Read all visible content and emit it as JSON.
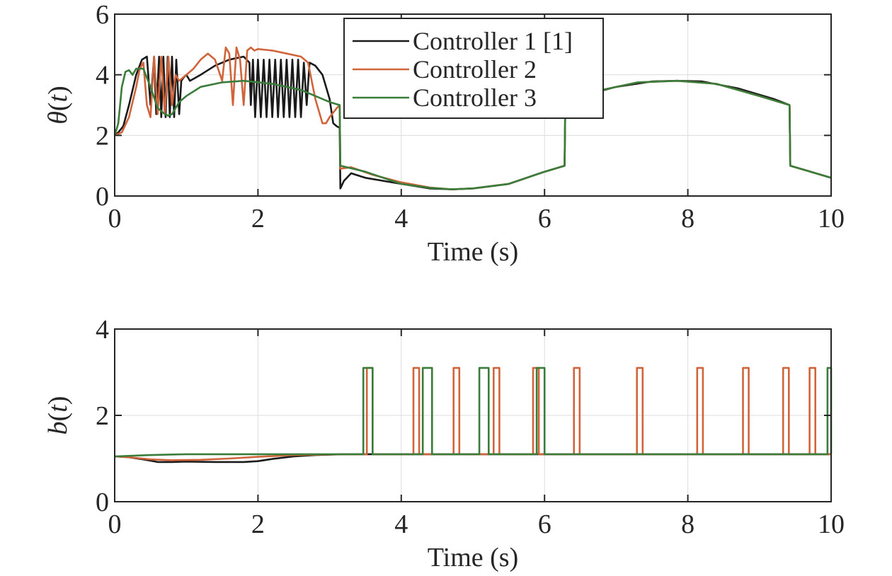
{
  "chart_data": [
    {
      "type": "line",
      "xlabel": "Time (s)",
      "ylabel": "θ(t)",
      "xlim": [
        0,
        10
      ],
      "ylim": [
        0,
        6
      ],
      "xticks": [
        "0",
        "2",
        "4",
        "6",
        "8",
        "10"
      ],
      "yticks": [
        "0",
        "2",
        "4",
        "6"
      ],
      "grid": true,
      "legend": "top-center",
      "series": [
        {
          "name": "Controller 1 [1]",
          "color": "#1a1a1a",
          "x": [
            0,
            0.05,
            0.12,
            0.2,
            0.3,
            0.38,
            0.45,
            0.5,
            0.55,
            0.58,
            0.62,
            0.65,
            0.68,
            0.71,
            0.74,
            0.77,
            0.8,
            0.83,
            0.86,
            0.9,
            0.93,
            0.96,
            1.0,
            1.05,
            1.2,
            1.4,
            1.6,
            1.8,
            1.88,
            1.9,
            1.93,
            1.96,
            2.0,
            2.04,
            2.08,
            2.12,
            2.16,
            2.2,
            2.24,
            2.28,
            2.32,
            2.36,
            2.4,
            2.44,
            2.48,
            2.52,
            2.56,
            2.6,
            2.64,
            2.68,
            2.72,
            2.8,
            2.9,
            3.0,
            3.05,
            3.1,
            3.14,
            3.15,
            3.2,
            3.3,
            3.5,
            4.0,
            4.4,
            4.71,
            5.0,
            5.5,
            6.0,
            6.28,
            6.29,
            6.5,
            7.0,
            7.5,
            7.85,
            8.2,
            8.7,
            9.2,
            9.42,
            9.43,
            10.0
          ],
          "y": [
            2.0,
            2.1,
            2.3,
            3.0,
            4.0,
            4.5,
            4.6,
            3.0,
            4.6,
            2.7,
            4.6,
            2.6,
            4.6,
            2.6,
            4.6,
            2.6,
            4.6,
            2.6,
            4.5,
            2.7,
            3.8,
            3.9,
            4.0,
            3.8,
            4.0,
            4.3,
            4.5,
            4.6,
            4.4,
            3.0,
            4.5,
            2.6,
            4.5,
            2.6,
            4.5,
            2.6,
            4.5,
            2.6,
            4.5,
            2.6,
            4.5,
            2.6,
            4.5,
            2.6,
            4.5,
            2.6,
            4.5,
            2.6,
            4.4,
            3.0,
            4.4,
            4.3,
            4.0,
            3.2,
            2.4,
            2.3,
            2.25,
            0.25,
            0.5,
            0.75,
            0.6,
            0.4,
            0.25,
            0.22,
            0.25,
            0.4,
            0.8,
            1.0,
            3.0,
            3.3,
            3.6,
            3.78,
            3.8,
            3.78,
            3.55,
            3.2,
            3.0,
            1.0,
            0.6
          ]
        },
        {
          "name": "Controller 2",
          "color": "#d0643b",
          "x": [
            0,
            0.1,
            0.2,
            0.3,
            0.35,
            0.4,
            0.45,
            0.5,
            0.55,
            0.6,
            0.65,
            0.7,
            0.75,
            0.8,
            0.85,
            0.9,
            0.95,
            1.0,
            1.1,
            1.2,
            1.3,
            1.4,
            1.5,
            1.55,
            1.6,
            1.65,
            1.7,
            1.75,
            1.8,
            1.85,
            1.9,
            1.95,
            2.0,
            2.2,
            2.4,
            2.6,
            2.7,
            2.8,
            2.9,
            2.95,
            3.0,
            3.1,
            3.14,
            3.15,
            3.3,
            3.6,
            4.0,
            4.4,
            4.71,
            5.0,
            5.5,
            6.0,
            6.28,
            6.29,
            6.8,
            7.3,
            7.85,
            8.4,
            9.0,
            9.42,
            9.43,
            10.0
          ],
          "y": [
            2.0,
            2.1,
            2.6,
            3.6,
            4.2,
            4.4,
            3.0,
            2.6,
            4.6,
            2.7,
            4.6,
            2.7,
            4.6,
            3.0,
            4.0,
            3.8,
            3.9,
            4.0,
            4.2,
            4.5,
            4.7,
            4.5,
            3.8,
            4.9,
            4.7,
            3.0,
            4.9,
            4.5,
            3.0,
            4.8,
            4.9,
            4.8,
            4.85,
            4.8,
            4.7,
            4.6,
            4.4,
            3.2,
            2.4,
            2.4,
            2.6,
            2.9,
            3.0,
            0.9,
            0.95,
            0.7,
            0.45,
            0.28,
            0.22,
            0.25,
            0.4,
            0.8,
            1.0,
            3.0,
            3.5,
            3.75,
            3.8,
            3.7,
            3.3,
            3.0,
            1.0,
            0.6
          ]
        },
        {
          "name": "Controller 3",
          "color": "#3a7d3a",
          "x": [
            0,
            0.05,
            0.1,
            0.15,
            0.2,
            0.25,
            0.3,
            0.4,
            0.5,
            0.6,
            0.7,
            0.75,
            0.8,
            0.85,
            0.9,
            1.0,
            1.2,
            1.5,
            1.8,
            2.2,
            2.6,
            3.0,
            3.14,
            3.15,
            3.5,
            4.0,
            4.4,
            4.71,
            5.0,
            5.5,
            6.0,
            6.28,
            6.29,
            6.8,
            7.3,
            7.85,
            8.4,
            9.0,
            9.42,
            9.43,
            10.0
          ],
          "y": [
            2.0,
            2.4,
            3.6,
            4.1,
            4.15,
            4.0,
            4.2,
            4.2,
            3.6,
            2.9,
            2.7,
            2.65,
            2.7,
            2.9,
            3.1,
            3.3,
            3.6,
            3.75,
            3.8,
            3.7,
            3.5,
            3.1,
            3.0,
            1.0,
            0.8,
            0.4,
            0.27,
            0.22,
            0.25,
            0.4,
            0.8,
            1.0,
            3.0,
            3.5,
            3.75,
            3.8,
            3.7,
            3.3,
            3.0,
            1.0,
            0.6
          ]
        }
      ]
    },
    {
      "type": "line",
      "xlabel": "Time (s)",
      "ylabel": "b(t)",
      "xlim": [
        0,
        10
      ],
      "ylim": [
        0,
        4
      ],
      "xticks": [
        "0",
        "2",
        "4",
        "6",
        "8",
        "10"
      ],
      "yticks": [
        "0",
        "2",
        "4"
      ],
      "grid": true,
      "baseline": 1.1,
      "pulse_height": 3.1,
      "series": [
        {
          "name": "Controller 1 [1]",
          "color": "#1a1a1a",
          "x": [
            0,
            0.2,
            0.4,
            0.6,
            0.8,
            1.0,
            1.4,
            1.8,
            2.0,
            2.2,
            2.5,
            2.8,
            3.2,
            10.0
          ],
          "y": [
            1.05,
            1.03,
            0.98,
            0.92,
            0.92,
            0.93,
            0.92,
            0.92,
            0.94,
            0.99,
            1.05,
            1.08,
            1.1,
            1.1
          ],
          "pulses": []
        },
        {
          "name": "Controller 2",
          "color": "#d0643b",
          "x": [
            0,
            0.2,
            0.5,
            0.8,
            1.2,
            1.6,
            2.0,
            2.5,
            3.2,
            10.0
          ],
          "y": [
            1.05,
            1.03,
            0.98,
            0.96,
            0.97,
            1.0,
            1.04,
            1.08,
            1.1,
            1.1
          ],
          "pulses": [
            [
              3.52,
              3.6
            ],
            [
              4.17,
              4.25
            ],
            [
              4.73,
              4.81
            ],
            [
              5.29,
              5.37
            ],
            [
              5.84,
              5.92
            ],
            [
              6.41,
              6.49
            ],
            [
              7.29,
              7.37
            ],
            [
              8.13,
              8.21
            ],
            [
              8.77,
              8.85
            ],
            [
              9.33,
              9.41
            ],
            [
              9.7,
              9.78
            ]
          ]
        },
        {
          "name": "Controller 3",
          "color": "#3a7d3a",
          "x": [
            0,
            0.5,
            1.0,
            1.5,
            2.0,
            3.2,
            10.0
          ],
          "y": [
            1.05,
            1.08,
            1.1,
            1.1,
            1.1,
            1.1,
            1.1
          ],
          "pulses": [
            [
              3.47,
              3.6
            ],
            [
              4.3,
              4.43
            ],
            [
              5.09,
              5.22
            ],
            [
              5.89,
              6.0
            ],
            [
              9.95,
              10.0
            ]
          ]
        }
      ]
    }
  ]
}
